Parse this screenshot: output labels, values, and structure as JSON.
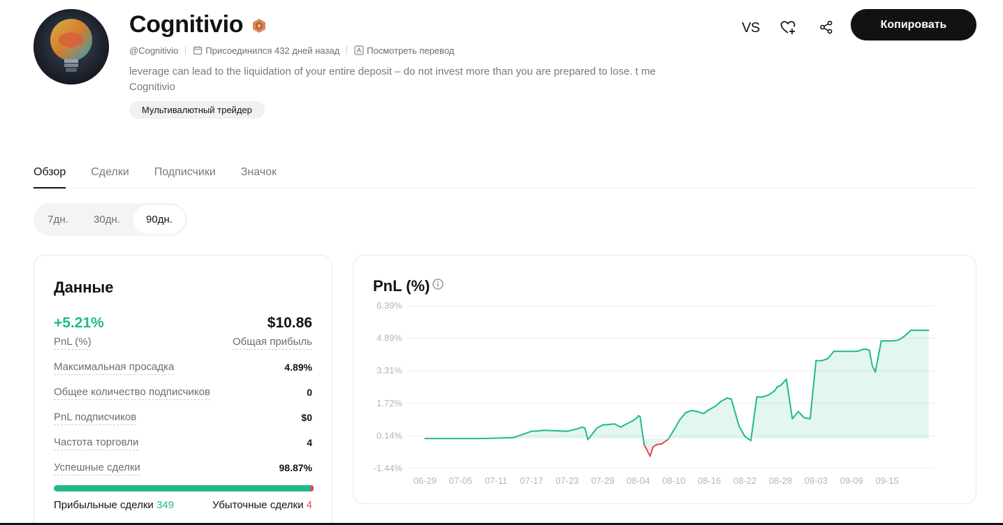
{
  "profile": {
    "name": "Cognitivio",
    "handle": "@Cognitivio",
    "joined": "Присоединился 432 дней назад",
    "translate_link": "Посмотреть перевод",
    "bio": "leverage can lead to the liquidation of your entire deposit – do not invest more than you are prepared to lose. t me Cognitivio",
    "tag": "Мультивалютный трейдер"
  },
  "header_actions": {
    "vs_label": "VS",
    "copy_label": "Копировать"
  },
  "tabs": [
    {
      "label": "Обзор",
      "active": true
    },
    {
      "label": "Сделки",
      "active": false
    },
    {
      "label": "Подписчики",
      "active": false
    },
    {
      "label": "Значок",
      "active": false
    }
  ],
  "periods": [
    {
      "label": "7дн.",
      "active": false
    },
    {
      "label": "30дн.",
      "active": false
    },
    {
      "label": "90дн.",
      "active": true
    }
  ],
  "stats": {
    "title": "Данные",
    "pnl_value": "+5.21%",
    "pnl_label": "PnL (%)",
    "profit_value": "$10.86",
    "profit_label": "Общая прибыль",
    "rows": [
      {
        "label": "Максимальная просадка",
        "value": "4.89%"
      },
      {
        "label": "Общее количество подписчиков",
        "value": "0"
      },
      {
        "label": "PnL подписчиков",
        "value": "$0"
      },
      {
        "label": "Частота торговли",
        "value": "4"
      },
      {
        "label": "Успешные сделки",
        "value": "98.87%"
      }
    ],
    "win_rate_fraction": 0.9887,
    "profitable_label": "Прибыльные сделки",
    "profitable_count": "349",
    "losing_label": "Убыточные сделки",
    "losing_count": "4"
  },
  "colors": {
    "positive": "#1fb98a",
    "negative": "#f0434f",
    "primary": "#121212"
  },
  "icons": {
    "badge": "bronze-badge-icon",
    "calendar": "calendar-icon",
    "translate": "translate-icon",
    "follow": "heart-plus-icon",
    "share": "share-icon",
    "info": "info-icon"
  },
  "chart_data": {
    "type": "area",
    "title": "PnL (%)",
    "ytick_labels": [
      "6.39%",
      "4.89%",
      "3.31%",
      "1.72%",
      "0.14%",
      "-1.44%"
    ],
    "ylim": [
      -1.44,
      6.39
    ],
    "xtick_labels": [
      "06-29",
      "07-05",
      "07-11",
      "07-17",
      "07-23",
      "07-29",
      "08-04",
      "08-10",
      "08-16",
      "08-22",
      "08-28",
      "09-03",
      "09-09",
      "09-15"
    ],
    "xlim": [
      -3,
      86
    ],
    "grid": true,
    "legend": "none",
    "series": [
      {
        "x": [
          0,
          10,
          15,
          18,
          19,
          20,
          24,
          25.5,
          26.5,
          27,
          27.5,
          29,
          30,
          32,
          33,
          35,
          35.8,
          36,
          36.3,
          37,
          38,
          38.5,
          39,
          40,
          41,
          42,
          43,
          44,
          45,
          46,
          47,
          48,
          49,
          50,
          51,
          51.7,
          52,
          53,
          54,
          55,
          56,
          57,
          58,
          59,
          59.5,
          60,
          61,
          62,
          63,
          64,
          65,
          66,
          67,
          68,
          69,
          70,
          71,
          72,
          73,
          74,
          74.5,
          75,
          75.5,
          76,
          77,
          77.5,
          78,
          79,
          80,
          81,
          82,
          82.5,
          83,
          84,
          85
        ],
        "y": [
          0.0,
          0.0,
          0.05,
          0.35,
          0.36,
          0.4,
          0.35,
          0.45,
          0.55,
          0.5,
          -0.05,
          0.5,
          0.65,
          0.7,
          0.55,
          0.85,
          1.0,
          1.1,
          1.05,
          -0.3,
          -0.85,
          -0.4,
          -0.3,
          -0.25,
          -0.05,
          0.4,
          0.9,
          1.25,
          1.35,
          1.3,
          1.2,
          1.4,
          1.55,
          1.8,
          1.95,
          1.9,
          1.6,
          0.6,
          0.1,
          -0.1,
          2.0,
          2.0,
          2.1,
          2.3,
          2.5,
          2.55,
          2.85,
          0.95,
          1.3,
          1.0,
          0.95,
          3.75,
          3.75,
          3.85,
          4.2,
          4.2,
          4.2,
          4.2,
          4.2,
          4.3,
          4.3,
          4.25,
          3.5,
          3.2,
          4.7,
          4.7,
          4.7,
          4.7,
          4.75,
          4.95,
          5.21,
          5.21,
          5.21,
          5.21,
          5.21
        ]
      }
    ]
  }
}
